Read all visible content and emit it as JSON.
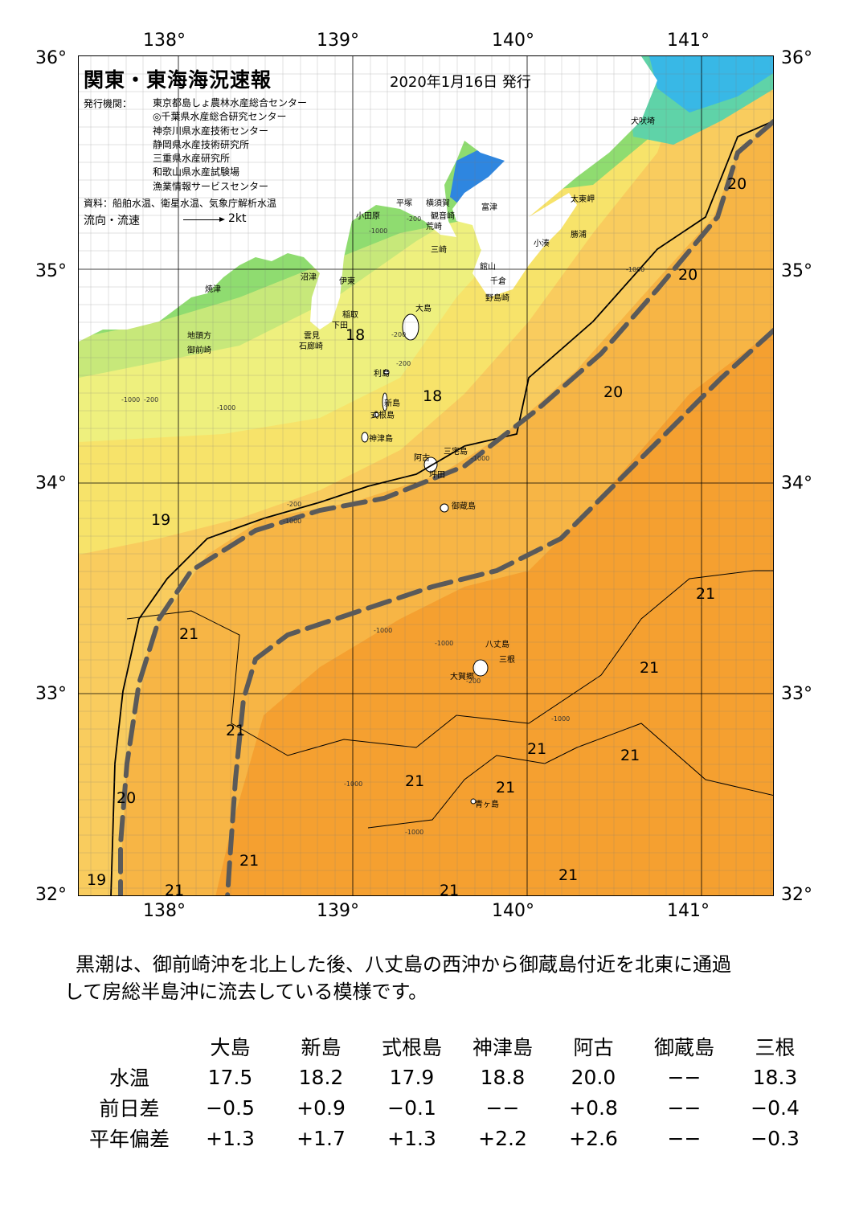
{
  "map": {
    "title": "関東・東海海況速報",
    "date": "2020年1月16日 発行",
    "issuer_label": "発行機関：",
    "issuers": [
      "東京都島しょ農林水産総合センター",
      "◎千葉県水産総合研究センター",
      "神奈川県水産技術センター",
      "静岡県水産技術研究所",
      "三重県水産研究所",
      "和歌山県水産試験場",
      "漁業情報サービスセンター"
    ],
    "source": "資料：船舶水温、衛星水温、気象庁解析水温",
    "legend_label": "流向・流速",
    "legend_unit": "2kt",
    "lon_labels": [
      "138°",
      "139°",
      "140°",
      "141°"
    ],
    "lat_labels": [
      "36°",
      "35°",
      "34°",
      "33°",
      "32°"
    ],
    "extent": {
      "lon": [
        137.5,
        141.5
      ],
      "lat": [
        32,
        36
      ]
    },
    "colors": {
      "deep_orange": "#f5a030",
      "orange": "#f7b545",
      "light_orange": "#f9cc5e",
      "yellow": "#f7e36a",
      "pale_yellow": "#eef07e",
      "yellow_green": "#c7e87a",
      "green": "#8fdc70",
      "teal": "#5fd3a8",
      "cyan": "#38b8e6",
      "blue": "#2e86e0",
      "kuroshio_axis": "#5a5a5a"
    },
    "places": [
      {
        "name": "小田原",
        "lon": 139.1,
        "lat": 35.27
      },
      {
        "name": "平塚",
        "lon": 139.33,
        "lat": 35.33
      },
      {
        "name": "横須賀",
        "lon": 139.5,
        "lat": 35.33
      },
      {
        "name": "観音崎",
        "lon": 139.53,
        "lat": 35.27
      },
      {
        "name": "荒崎",
        "lon": 139.5,
        "lat": 35.22
      },
      {
        "name": "三崎",
        "lon": 139.53,
        "lat": 35.11
      },
      {
        "name": "富津",
        "lon": 139.82,
        "lat": 35.31
      },
      {
        "name": "太東岬",
        "lon": 140.33,
        "lat": 35.35
      },
      {
        "name": "勝浦",
        "lon": 140.33,
        "lat": 35.18
      },
      {
        "name": "小湊",
        "lon": 140.12,
        "lat": 35.14
      },
      {
        "name": "館山",
        "lon": 139.81,
        "lat": 35.03
      },
      {
        "name": "千倉",
        "lon": 139.87,
        "lat": 34.96
      },
      {
        "name": "野島崎",
        "lon": 139.84,
        "lat": 34.88
      },
      {
        "name": "犬吠埼",
        "lon": 140.68,
        "lat": 35.72
      },
      {
        "name": "沼津",
        "lon": 138.78,
        "lat": 34.98
      },
      {
        "name": "伊東",
        "lon": 139.0,
        "lat": 34.96
      },
      {
        "name": "焼津",
        "lon": 138.23,
        "lat": 34.92
      },
      {
        "name": "稲取",
        "lon": 139.02,
        "lat": 34.8
      },
      {
        "name": "下田",
        "lon": 138.96,
        "lat": 34.75
      },
      {
        "name": "雲見",
        "lon": 138.8,
        "lat": 34.7
      },
      {
        "name": "石廊崎",
        "lon": 138.77,
        "lat": 34.65
      },
      {
        "name": "地頭方",
        "lon": 138.13,
        "lat": 34.7
      },
      {
        "name": "御前崎",
        "lon": 138.13,
        "lat": 34.63
      },
      {
        "name": "大島",
        "lon": 139.44,
        "lat": 34.83
      },
      {
        "name": "利島",
        "lon": 139.2,
        "lat": 34.52
      },
      {
        "name": "新島",
        "lon": 139.26,
        "lat": 34.38
      },
      {
        "name": "式根島",
        "lon": 139.18,
        "lat": 34.32
      },
      {
        "name": "神津島",
        "lon": 139.17,
        "lat": 34.21
      },
      {
        "name": "三宅島",
        "lon": 139.6,
        "lat": 34.15
      },
      {
        "name": "阿古",
        "lon": 139.43,
        "lat": 34.12
      },
      {
        "name": "坪田",
        "lon": 139.52,
        "lat": 34.04
      },
      {
        "name": "御蔵島",
        "lon": 139.65,
        "lat": 33.89
      },
      {
        "name": "八丈島",
        "lon": 139.84,
        "lat": 33.23
      },
      {
        "name": "三根",
        "lon": 139.92,
        "lat": 33.16
      },
      {
        "name": "大賀郷",
        "lon": 139.64,
        "lat": 33.08
      },
      {
        "name": "青ヶ島",
        "lon": 139.78,
        "lat": 32.47
      }
    ],
    "temp_labels": [
      {
        "text": "20",
        "lon": 141.23,
        "lat": 35.43
      },
      {
        "text": "20",
        "lon": 140.95,
        "lat": 35.0
      },
      {
        "text": "20",
        "lon": 140.52,
        "lat": 34.44
      },
      {
        "text": "18",
        "lon": 139.04,
        "lat": 34.71
      },
      {
        "text": "18",
        "lon": 139.48,
        "lat": 34.42
      },
      {
        "text": "19",
        "lon": 137.92,
        "lat": 33.83
      },
      {
        "text": "21",
        "lon": 141.05,
        "lat": 33.48
      },
      {
        "text": "21",
        "lon": 138.08,
        "lat": 33.29
      },
      {
        "text": "21",
        "lon": 140.73,
        "lat": 33.13
      },
      {
        "text": "21",
        "lon": 138.35,
        "lat": 32.83
      },
      {
        "text": "21",
        "lon": 140.08,
        "lat": 32.74
      },
      {
        "text": "21",
        "lon": 140.62,
        "lat": 32.71
      },
      {
        "text": "21",
        "lon": 139.38,
        "lat": 32.59
      },
      {
        "text": "21",
        "lon": 139.9,
        "lat": 32.56
      },
      {
        "text": "20",
        "lon": 137.72,
        "lat": 32.51
      },
      {
        "text": "21",
        "lon": 138.43,
        "lat": 32.21
      },
      {
        "text": "21",
        "lon": 140.26,
        "lat": 32.14
      },
      {
        "text": "19",
        "lon": 137.55,
        "lat": 32.12
      },
      {
        "text": "21",
        "lon": 138.0,
        "lat": 32.07
      },
      {
        "text": "21",
        "lon": 139.58,
        "lat": 32.07
      }
    ],
    "depth_labels": [
      {
        "text": "-200",
        "lon": 139.39,
        "lat": 35.24
      },
      {
        "text": "-1000",
        "lon": 139.17,
        "lat": 35.18
      },
      {
        "text": "-1000",
        "lon": 140.65,
        "lat": 35.0
      },
      {
        "text": "-200",
        "lon": 139.3,
        "lat": 34.69
      },
      {
        "text": "-200",
        "lon": 139.33,
        "lat": 34.55
      },
      {
        "text": "-1000",
        "lon": 137.75,
        "lat": 34.38
      },
      {
        "text": "-200",
        "lon": 137.88,
        "lat": 34.38
      },
      {
        "text": "-1000",
        "lon": 138.3,
        "lat": 34.34
      },
      {
        "text": "-1000",
        "lon": 139.76,
        "lat": 34.1
      },
      {
        "text": "-200",
        "lon": 138.7,
        "lat": 33.88
      },
      {
        "text": "-1000",
        "lon": 138.68,
        "lat": 33.8
      },
      {
        "text": "-1000",
        "lon": 139.2,
        "lat": 33.28
      },
      {
        "text": "-1000",
        "lon": 139.55,
        "lat": 33.22
      },
      {
        "text": "-200",
        "lon": 139.73,
        "lat": 33.04
      },
      {
        "text": "-1000",
        "lon": 140.22,
        "lat": 32.86
      },
      {
        "text": "-1000",
        "lon": 139.03,
        "lat": 32.55
      },
      {
        "text": "-1000",
        "lon": 139.38,
        "lat": 32.32
      }
    ]
  },
  "summary": {
    "line1": "黒潮は、御前崎沖を北上した後、八丈島の西沖から御蔵島付近を北東に通過",
    "line2": "して房総半島沖に流去している模様です。"
  },
  "table": {
    "columns": [
      "大島",
      "新島",
      "式根島",
      "神津島",
      "阿古",
      "御蔵島",
      "三根"
    ],
    "rows": [
      {
        "label": "水温",
        "values": [
          "17.5",
          "18.2",
          "17.9",
          "18.8",
          "20.0",
          "−−",
          "18.3"
        ]
      },
      {
        "label": "前日差",
        "values": [
          "−0.5",
          "+0.9",
          "−0.1",
          "−−",
          "+0.8",
          "−−",
          "−0.4"
        ]
      },
      {
        "label": "平年偏差",
        "values": [
          "+1.3",
          "+1.7",
          "+1.3",
          "+2.2",
          "+2.6",
          "−−",
          "−0.3"
        ]
      }
    ]
  }
}
